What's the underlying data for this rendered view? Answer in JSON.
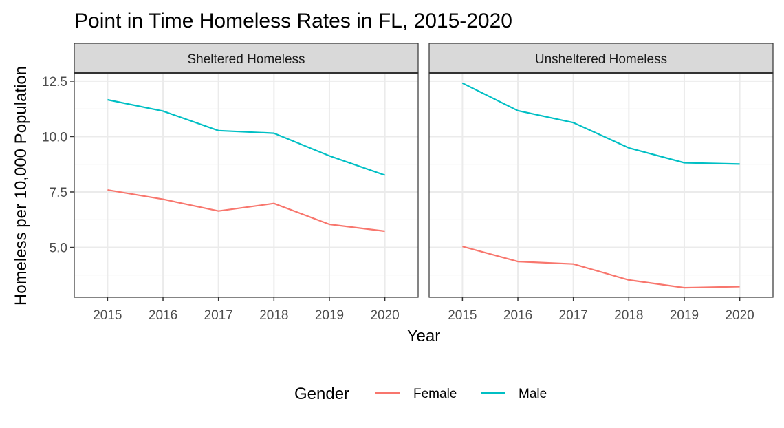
{
  "chart_data": {
    "type": "line",
    "title": "Point in Time Homeless Rates in FL, 2015-2020",
    "xlabel": "Year",
    "ylabel": "Homeless per 10,000 Population",
    "x": [
      2015,
      2016,
      2017,
      2018,
      2019,
      2020
    ],
    "x_tick_labels": [
      "2015",
      "2016",
      "2017",
      "2018",
      "2019",
      "2020"
    ],
    "xlim": [
      2014.4,
      2020.6
    ],
    "y_ticks": [
      5.0,
      7.5,
      10.0,
      12.5
    ],
    "y_tick_labels": [
      "5.0",
      "7.5",
      "10.0",
      "12.5"
    ],
    "y_minor_ticks": [
      3.75,
      6.25,
      8.75,
      11.25
    ],
    "ylim": [
      2.75,
      12.87
    ],
    "grid": true,
    "legend": {
      "title": "Gender",
      "placement": "bottom",
      "entries": [
        {
          "label": "Female",
          "color": "#F8766D"
        },
        {
          "label": "Male",
          "color": "#00BFC4"
        }
      ]
    },
    "panels": [
      {
        "strip": "Sheltered Homeless",
        "series": [
          {
            "name": "Female",
            "color": "#F8766D",
            "values": [
              7.59,
              7.17,
              6.64,
              6.98,
              6.04,
              5.73
            ]
          },
          {
            "name": "Male",
            "color": "#00BFC4",
            "values": [
              11.66,
              11.15,
              10.27,
              10.15,
              9.13,
              8.26
            ]
          }
        ]
      },
      {
        "strip": "Unsheltered Homeless",
        "series": [
          {
            "name": "Female",
            "color": "#F8766D",
            "values": [
              5.04,
              4.36,
              4.25,
              3.53,
              3.18,
              3.23
            ]
          },
          {
            "name": "Male",
            "color": "#00BFC4",
            "values": [
              12.41,
              11.17,
              10.63,
              9.49,
              8.82,
              8.76
            ]
          }
        ]
      }
    ]
  }
}
